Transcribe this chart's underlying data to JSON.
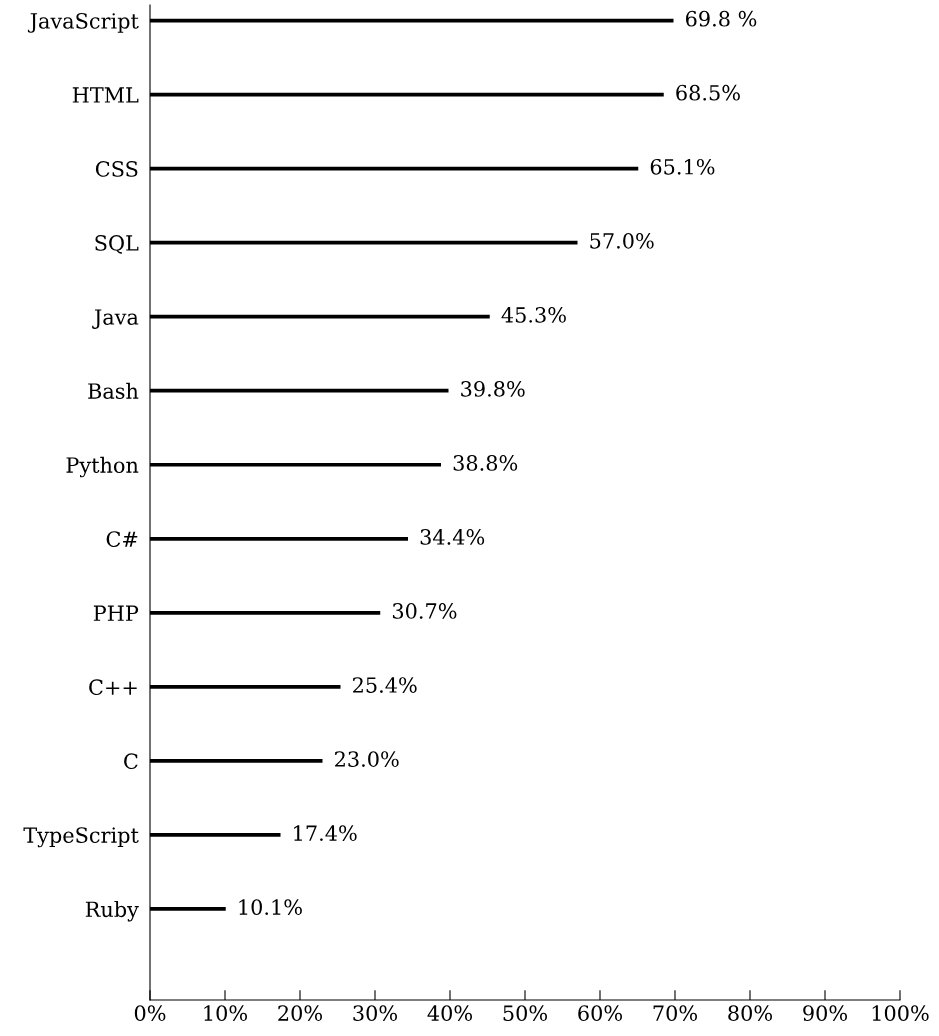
{
  "chart_data": {
    "type": "bar",
    "orientation": "horizontal",
    "categories": [
      "JavaScript",
      "HTML",
      "CSS",
      "SQL",
      "Java",
      "Bash",
      "Python",
      "C#",
      "PHP",
      "C++",
      "C",
      "TypeScript",
      "Ruby"
    ],
    "values": [
      69.8,
      68.5,
      65.1,
      57.0,
      45.3,
      39.8,
      38.8,
      34.4,
      30.7,
      25.4,
      23.0,
      17.4,
      10.1
    ],
    "value_labels": [
      "69.8 %",
      "68.5%",
      "65.1%",
      "57.0%",
      "45.3%",
      "39.8%",
      "38.8%",
      "34.4%",
      "30.7%",
      "25.4%",
      "23.0%",
      "17.4%",
      "10.1%"
    ],
    "color": "#000000",
    "xlim": [
      0,
      100
    ],
    "xticks": [
      {
        "value": 0,
        "label": "0%"
      },
      {
        "value": 10,
        "label": "10%"
      },
      {
        "value": 20,
        "label": "20%"
      },
      {
        "value": 30,
        "label": "30%"
      },
      {
        "value": 40,
        "label": "40%"
      },
      {
        "value": 50,
        "label": "50%"
      },
      {
        "value": 60,
        "label": "60%"
      },
      {
        "value": 70,
        "label": "70%"
      },
      {
        "value": 80,
        "label": "80%"
      },
      {
        "value": 90,
        "label": "90%"
      },
      {
        "value": 100,
        "label": "100%"
      }
    ],
    "grid": false,
    "legend": false
  }
}
